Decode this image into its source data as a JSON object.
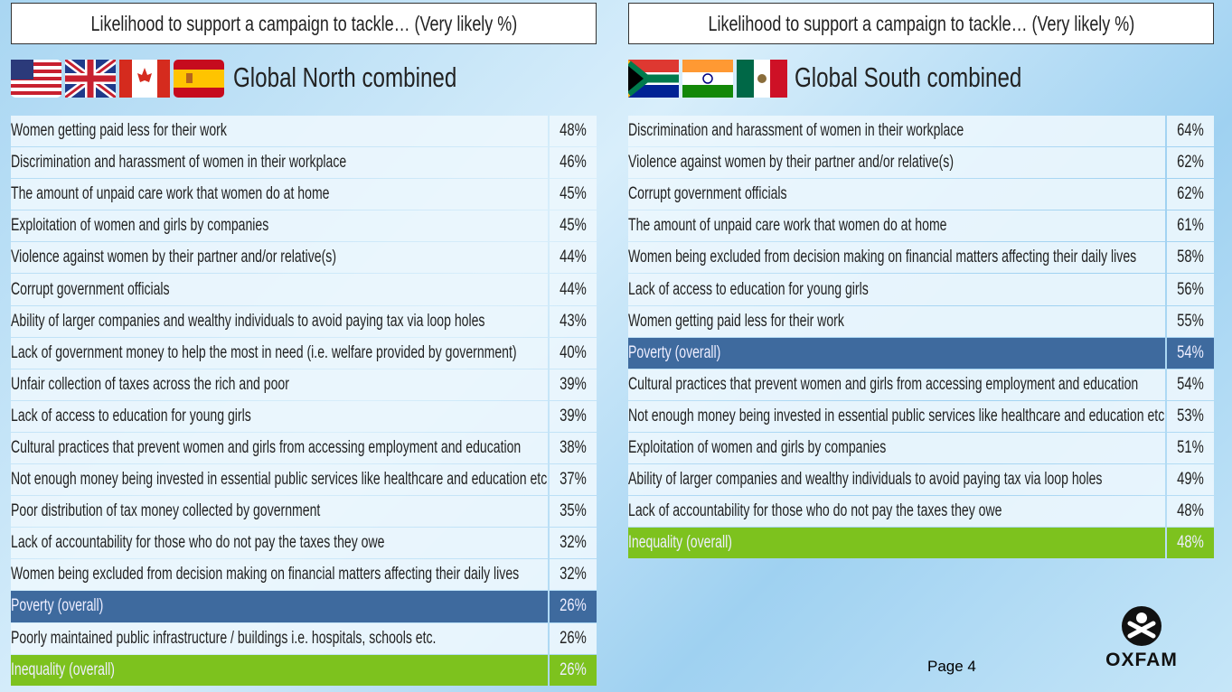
{
  "panels": [
    {
      "header": "Likelihood to support a campaign to tackle… (Very likely %)",
      "title": "Global North combined",
      "rows": [
        {
          "label": "Women getting paid less for their work",
          "value": "48%"
        },
        {
          "label": "Discrimination and harassment of women in their workplace",
          "value": "46%"
        },
        {
          "label": "The amount of unpaid care work that women do at home",
          "value": "45%"
        },
        {
          "label": "Exploitation of women and girls by companies",
          "value": "45%"
        },
        {
          "label": "Violence against women by their partner and/or relative(s)",
          "value": "44%"
        },
        {
          "label": "Corrupt government officials",
          "value": "44%"
        },
        {
          "label": "Ability of larger companies and wealthy individuals to avoid paying tax via loop holes",
          "value": "43%"
        },
        {
          "label": "Lack of government money to help the most in need (i.e. welfare provided by government)",
          "value": "40%"
        },
        {
          "label": "Unfair collection of taxes across the rich and poor",
          "value": "39%"
        },
        {
          "label": "Lack of access to education for young girls",
          "value": "39%"
        },
        {
          "label": "Cultural practices that prevent women and girls from accessing employment and education",
          "value": "38%"
        },
        {
          "label": "Not enough money being invested in essential public services like healthcare and education etc.",
          "value": "37%"
        },
        {
          "label": "Poor distribution of tax money collected by government",
          "value": "35%"
        },
        {
          "label": "Lack of accountability for those who do not pay the taxes they owe",
          "value": "32%"
        },
        {
          "label": "Women being excluded from decision making on financial matters affecting their daily lives",
          "value": "32%"
        },
        {
          "label": "Poverty (overall)",
          "value": "26%",
          "color": "#3e6a9e"
        },
        {
          "label": "Poorly maintained public infrastructure / buildings i.e. hospitals, schools etc.",
          "value": "26%"
        },
        {
          "label": "Inequality (overall)",
          "value": "26%",
          "color": "#7dc21e"
        }
      ]
    },
    {
      "header": "Likelihood to support a campaign to tackle… (Very likely %)",
      "title": "Global South combined",
      "rows": [
        {
          "label": "Discrimination and harassment of women in their workplace",
          "value": "64%"
        },
        {
          "label": "Violence against women by their partner and/or relative(s)",
          "value": "62%"
        },
        {
          "label": "Corrupt government officials",
          "value": "62%"
        },
        {
          "label": "The amount of unpaid care work that women do at home",
          "value": "61%"
        },
        {
          "label": "Women being excluded from decision making on financial matters affecting their daily lives",
          "value": "58%"
        },
        {
          "label": "Lack of access to education for young girls",
          "value": "56%"
        },
        {
          "label": "Women getting paid less for their work",
          "value": "55%"
        },
        {
          "label": "Poverty (overall)",
          "value": "54%",
          "color": "#3e6a9e"
        },
        {
          "label": "Cultural practices that prevent women and girls from accessing employment and education",
          "value": "54%"
        },
        {
          "label": "Not enough money being invested in essential public services like healthcare and education etc.",
          "value": "53%"
        },
        {
          "label": "Exploitation of women and girls by companies",
          "value": "51%"
        },
        {
          "label": "Ability of larger companies and wealthy individuals to avoid paying tax via loop holes",
          "value": "49%"
        },
        {
          "label": "Lack of accountability for those who do not pay the taxes they owe",
          "value": "48%"
        },
        {
          "label": "Inequality (overall)",
          "value": "48%",
          "color": "#7dc21e"
        }
      ]
    }
  ],
  "footer": {
    "page": "Page 4",
    "logo": "OXFAM"
  }
}
